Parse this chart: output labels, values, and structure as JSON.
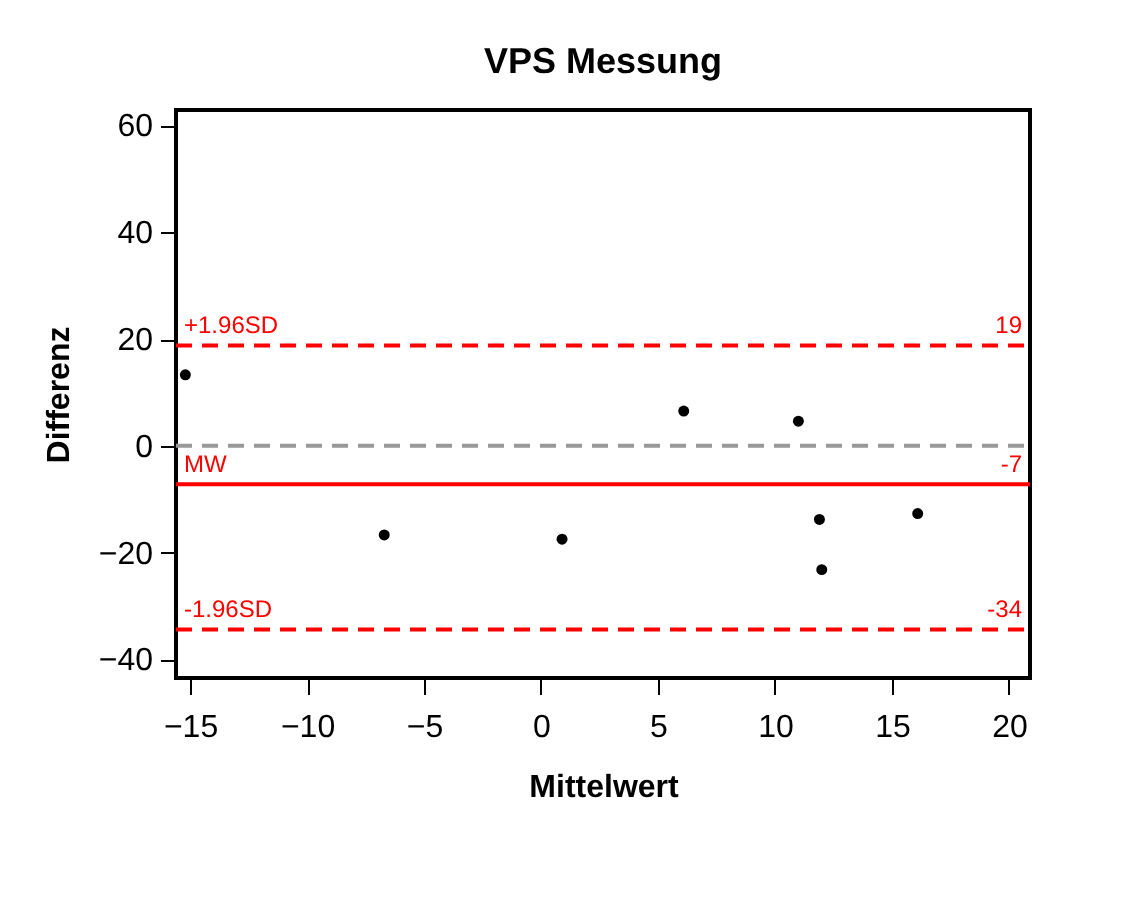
{
  "chart_data": {
    "type": "scatter",
    "title": "VPS Messung",
    "xlabel": "Mittelwert",
    "ylabel": "Differenz",
    "x": [
      -15.2,
      -6.7,
      0.9,
      6.1,
      11.0,
      11.9,
      12.0,
      16.1
    ],
    "series": [
      {
        "color": "#000000",
        "values": [
          13.3,
          -16.7,
          -17.5,
          6.5,
          4.6,
          -13.8,
          -23.2,
          -12.7
        ]
      }
    ],
    "marker": "circle",
    "xlim": [
      -15.6,
      20.9
    ],
    "xticks": [
      -15,
      -10,
      -5,
      0,
      5,
      10,
      15,
      20
    ],
    "ylim": [
      -43.5,
      62.9
    ],
    "yticks": [
      -40,
      -20,
      0,
      20,
      40,
      60
    ],
    "grid": false,
    "ref_lines": [
      {
        "axis": "y",
        "value": 18.8,
        "label": "+1.96SD",
        "color": "#ff0000",
        "line_style": "dashed"
      },
      {
        "axis": "y",
        "value": 0,
        "color": "#999999",
        "line_style": "dashed"
      },
      {
        "axis": "y",
        "value": -7.2,
        "label": "MW",
        "color": "#ff0000",
        "line_style": "solid"
      },
      {
        "axis": "y",
        "value": -34.4,
        "label": "-1.96SD",
        "color": "#ff0000",
        "line_style": "dashed"
      }
    ],
    "annotations": [
      {
        "text": "19",
        "y": 18.8
      },
      {
        "text": "-7",
        "y": -7.2
      },
      {
        "text": "-34",
        "y": -34.4
      }
    ]
  }
}
